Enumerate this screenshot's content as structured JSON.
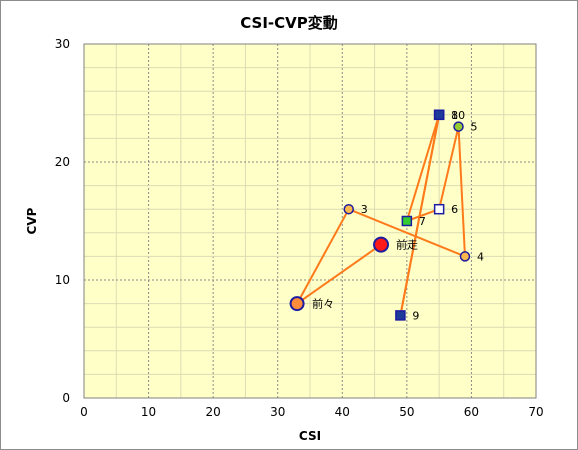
{
  "chart_data": {
    "type": "scatter",
    "title": "CSI-CVP変動",
    "xlabel": "CSI",
    "ylabel": "CVP",
    "xlim": [
      0,
      70
    ],
    "ylim": [
      0,
      30
    ],
    "xticks": [
      0,
      10,
      20,
      30,
      40,
      50,
      60,
      70
    ],
    "yticks": [
      0,
      10,
      20,
      30
    ],
    "grid": true,
    "legend": "none",
    "colors": {
      "plot_background": "#ffffc8",
      "line": "#ff7a1a",
      "marker_edge_blue": "#1c1ca0",
      "marker_orange_fill": "#ffb84d",
      "marker_red": "#ff1a1a",
      "marker_green": "#33cc33",
      "marker_navy": "#1f3a99",
      "marker_lime": "#99cc33"
    },
    "path_order": [
      "前走",
      "前々",
      "3",
      "4",
      "5",
      "6",
      "7",
      "8",
      "9",
      "10"
    ],
    "points": [
      {
        "label": "前走",
        "x": 46,
        "y": 13,
        "marker": "circle-red-large"
      },
      {
        "label": "前々",
        "x": 33,
        "y": 8,
        "marker": "circle-orange-large"
      },
      {
        "label": "3",
        "x": 41,
        "y": 16,
        "marker": "circle-orange"
      },
      {
        "label": "4",
        "x": 59,
        "y": 12,
        "marker": "circle-orange"
      },
      {
        "label": "5",
        "x": 58,
        "y": 23,
        "marker": "circle-lime"
      },
      {
        "label": "6",
        "x": 55,
        "y": 16,
        "marker": "square-open"
      },
      {
        "label": "7",
        "x": 50,
        "y": 15,
        "marker": "square-green"
      },
      {
        "label": "8",
        "x": 55,
        "y": 24,
        "marker": "square-navy"
      },
      {
        "label": "9",
        "x": 49,
        "y": 7,
        "marker": "square-navy"
      },
      {
        "label": "10",
        "x": 55,
        "y": 24,
        "marker": "square-navy"
      }
    ]
  }
}
